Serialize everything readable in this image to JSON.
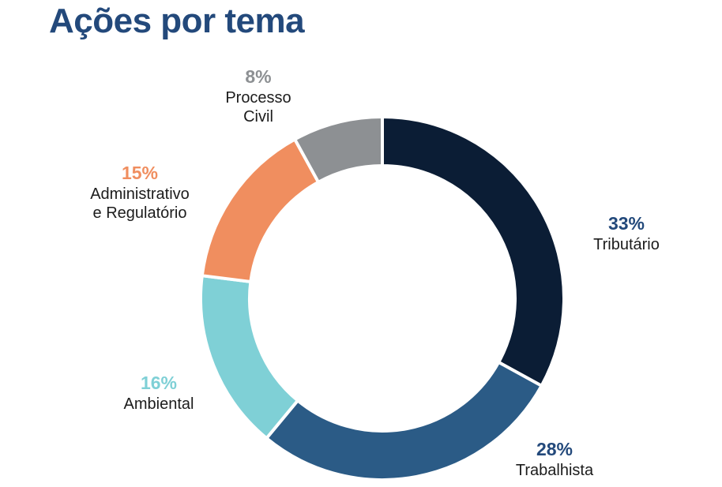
{
  "title": "Ações por tema",
  "chart_data": {
    "type": "pie",
    "title": "Ações por tema",
    "slices": [
      {
        "name": "Tributário",
        "value": 33,
        "label": "33%",
        "color": "#0b1d35"
      },
      {
        "name": "Trabalhista",
        "value": 28,
        "label": "28%",
        "color": "#2b5b86"
      },
      {
        "name": "Ambiental",
        "value": 16,
        "label": "16%",
        "color": "#7fd0d6"
      },
      {
        "name": "Administrativo\ne Regulatório",
        "value": 15,
        "label": "15%",
        "color": "#f08e5f"
      },
      {
        "name": "Processo\nCivil",
        "value": 8,
        "label": "8%",
        "color": "#8d9093"
      }
    ],
    "pct_colors": [
      "#23497b",
      "#23497b",
      "#7fd0d6",
      "#f08e5f",
      "#8d9093"
    ]
  }
}
